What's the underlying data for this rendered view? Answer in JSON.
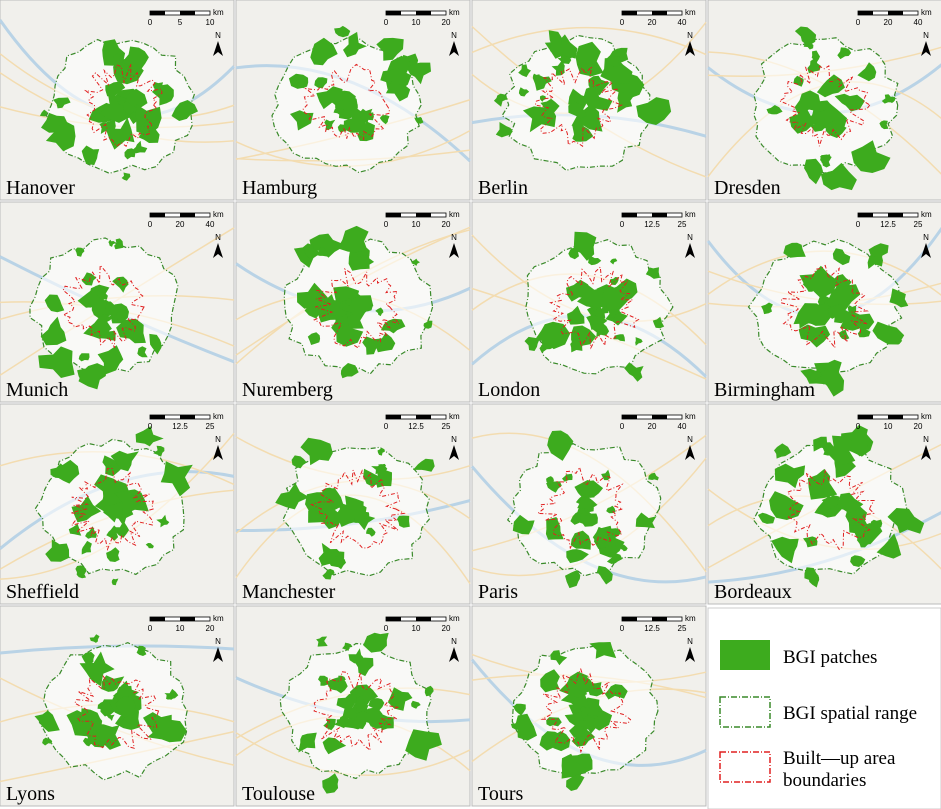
{
  "panels": [
    {
      "name": "Hanover",
      "scale": [
        "0",
        "5",
        "10"
      ]
    },
    {
      "name": "Hamburg",
      "scale": [
        "0",
        "10",
        "20"
      ]
    },
    {
      "name": "Berlin",
      "scale": [
        "0",
        "20",
        "40"
      ]
    },
    {
      "name": "Dresden",
      "scale": [
        "0",
        "20",
        "40"
      ]
    },
    {
      "name": "Munich",
      "scale": [
        "0",
        "20",
        "40"
      ]
    },
    {
      "name": "Nuremberg",
      "scale": [
        "0",
        "10",
        "20"
      ]
    },
    {
      "name": "London",
      "scale": [
        "0",
        "12.5",
        "25"
      ]
    },
    {
      "name": "Birmingham",
      "scale": [
        "0",
        "12.5",
        "25"
      ]
    },
    {
      "name": "Sheffield",
      "scale": [
        "0",
        "12.5",
        "25"
      ]
    },
    {
      "name": "Manchester",
      "scale": [
        "0",
        "12.5",
        "25"
      ]
    },
    {
      "name": "Paris",
      "scale": [
        "0",
        "20",
        "40"
      ]
    },
    {
      "name": "Bordeaux",
      "scale": [
        "0",
        "10",
        "20"
      ]
    },
    {
      "name": "Lyons",
      "scale": [
        "0",
        "10",
        "20"
      ]
    },
    {
      "name": "Toulouse",
      "scale": [
        "0",
        "10",
        "20"
      ]
    },
    {
      "name": "Tours",
      "scale": [
        "0",
        "12.5",
        "25"
      ]
    }
  ],
  "scale_unit": "km",
  "north": "N",
  "legend": {
    "patches": "BGI patches",
    "range": "BGI spatial range",
    "builtup": [
      "Built—up area",
      "boundaries"
    ]
  }
}
